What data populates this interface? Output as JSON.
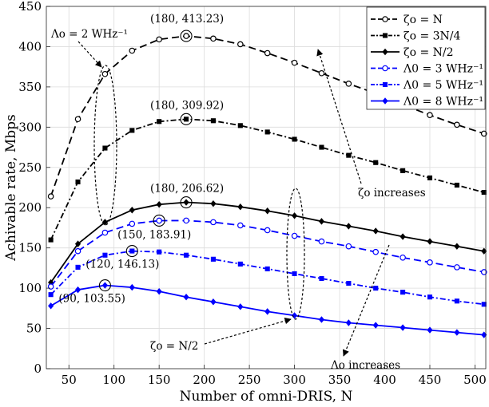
{
  "chart_data": {
    "type": "line",
    "xlabel": "Number of omni-DRIS, N",
    "ylabel": "Achivable rate, Mbps",
    "xlim": [
      25,
      512
    ],
    "ylim": [
      0,
      450
    ],
    "xticks": [
      50,
      100,
      150,
      200,
      250,
      300,
      350,
      400,
      450,
      500
    ],
    "yticks": [
      0,
      50,
      100,
      150,
      200,
      250,
      300,
      350,
      400,
      450
    ],
    "grid": true,
    "legend_position": "top-right",
    "legend": [
      "ζo = N",
      "ζo = 3N/4",
      "ζo = N/2",
      "Λ0 = 3 WHz⁻¹",
      "Λ0 = 5 WHz⁻¹",
      "Λ0 = 8 WHz⁻¹"
    ],
    "x": [
      30,
      60,
      90,
      120,
      150,
      180,
      210,
      240,
      270,
      300,
      330,
      360,
      390,
      420,
      450,
      480,
      510
    ],
    "series": [
      {
        "name": "ζo = N",
        "color": "#000000",
        "dash": "long",
        "marker": "open-circle",
        "values": [
          214,
          310,
          366,
          395,
          409,
          413.23,
          410,
          403,
          392,
          380,
          367,
          354,
          342,
          328,
          315,
          303,
          292
        ]
      },
      {
        "name": "ζo = 3N/4",
        "color": "#000000",
        "dash": "dashdot",
        "marker": "filled-square",
        "values": [
          160,
          232,
          274,
          296,
          307,
          309.92,
          308,
          302,
          294,
          285,
          275,
          265,
          256,
          246,
          237,
          228,
          219
        ]
      },
      {
        "name": "ζo = N/2",
        "color": "#000000",
        "dash": "solid",
        "marker": "filled-diamond",
        "values": [
          107,
          155,
          182,
          197,
          204,
          206.62,
          205,
          201,
          196,
          190,
          183,
          177,
          171,
          164,
          158,
          152,
          146
        ]
      },
      {
        "name": "Λ0 = 3 WHz⁻¹",
        "color": "#0000ff",
        "dash": "long",
        "marker": "open-circle",
        "values": [
          102,
          146,
          169,
          180,
          183.91,
          184,
          182,
          178,
          172,
          165,
          158,
          152,
          145,
          138,
          132,
          126,
          120
        ]
      },
      {
        "name": "Λ0 = 5 WHz⁻¹",
        "color": "#0000ff",
        "dash": "dashdot",
        "marker": "filled-square",
        "values": [
          92,
          126,
          141,
          146.13,
          145,
          141,
          136,
          130,
          124,
          118,
          112,
          106,
          100,
          95,
          89,
          84,
          80
        ]
      },
      {
        "name": "Λ0 = 8 WHz⁻¹",
        "color": "#0000ff",
        "dash": "solid",
        "marker": "filled-diamond",
        "values": [
          78,
          98,
          103.55,
          101,
          96,
          89,
          83,
          77,
          71,
          66,
          61,
          57,
          54,
          51,
          48,
          45,
          42
        ]
      }
    ],
    "peaks": [
      {
        "x": 180,
        "y": 413.23,
        "label": "(180, 413.23)"
      },
      {
        "x": 180,
        "y": 309.92,
        "label": "(180, 309.92)"
      },
      {
        "x": 180,
        "y": 206.62,
        "label": "(180, 206.62)"
      },
      {
        "x": 150,
        "y": 183.91,
        "label": "(150, 183.91)"
      },
      {
        "x": 120,
        "y": 146.13,
        "label": "(120, 146.13)"
      },
      {
        "x": 90,
        "y": 103.55,
        "label": "(90, 103.55)"
      }
    ],
    "annotations": {
      "lambda2": "Λo = 2 WHz⁻¹",
      "zeta_increases": "ζo increases",
      "zeta_half": "ζo = N/2",
      "lambda_increases": "Λo increases"
    }
  }
}
